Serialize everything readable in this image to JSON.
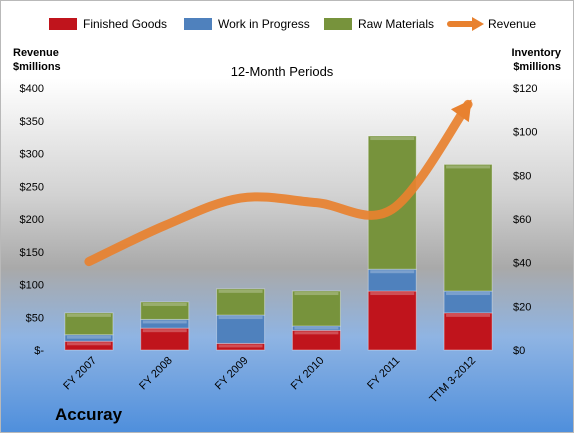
{
  "chart_data": {
    "type": "bar",
    "title": "12-Month Periods",
    "company": "Accuray",
    "categories": [
      "FY 2007",
      "FY 2008",
      "FY 2009",
      "FY 2010",
      "FY 2011",
      "TTM 3-2012"
    ],
    "series": [
      {
        "name": "Finished Goods",
        "axis": "right",
        "color": "#c0141c",
        "values": [
          4,
          10,
          3,
          9,
          27,
          17
        ]
      },
      {
        "name": "Work in Progress",
        "axis": "right",
        "color": "#4f81bd",
        "values": [
          3,
          4,
          13,
          2,
          10,
          10
        ]
      },
      {
        "name": "Raw Materials",
        "axis": "right",
        "color": "#77933c",
        "values": [
          10,
          8,
          12,
          16,
          61,
          58
        ]
      },
      {
        "name": "Revenue",
        "axis": "left",
        "type": "line",
        "color": "#e8812f",
        "values": [
          135,
          190,
          232,
          225,
          215,
          375
        ]
      }
    ],
    "left_axis": {
      "title_line1": "Revenue",
      "title_line2": "$millions",
      "ylim": [
        0,
        400
      ],
      "ticks": [
        "$-",
        "$50",
        "$100",
        "$150",
        "$200",
        "$250",
        "$300",
        "$350",
        "$400"
      ]
    },
    "right_axis": {
      "title_line1": "Inventory",
      "title_line2": "$millions",
      "ylim": [
        0,
        120
      ],
      "ticks": [
        "$0",
        "$20",
        "$40",
        "$60",
        "$80",
        "$100",
        "$120"
      ]
    },
    "legend_position": "top",
    "stacked": true
  }
}
